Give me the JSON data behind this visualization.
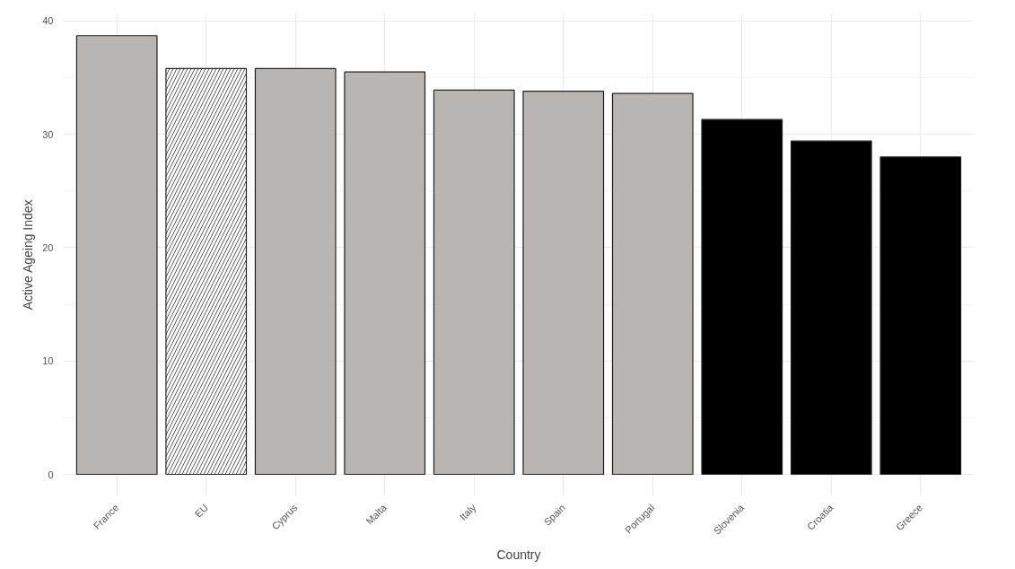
{
  "chart_data": {
    "type": "bar",
    "xlabel": "Country",
    "ylabel": "Active Ageing Index",
    "categories": [
      "France",
      "EU",
      "Cyprus",
      "Malta",
      "Italy",
      "Spain",
      "Portugal",
      "Slovenia",
      "Croatia",
      "Greece"
    ],
    "values": [
      38.7,
      35.8,
      35.8,
      35.5,
      33.9,
      33.8,
      33.6,
      31.3,
      29.4,
      28.0
    ],
    "colors": [
      "#b8b5b2",
      "#ffffff",
      "#b8b5b2",
      "#b8b5b2",
      "#b8b5b2",
      "#b8b5b2",
      "#b8b5b2",
      "#000000",
      "#000000",
      "#000000"
    ],
    "ylim": [
      -1.9,
      40.7
    ],
    "yticks": [
      0,
      10,
      20,
      30,
      40
    ],
    "grid": true
  }
}
